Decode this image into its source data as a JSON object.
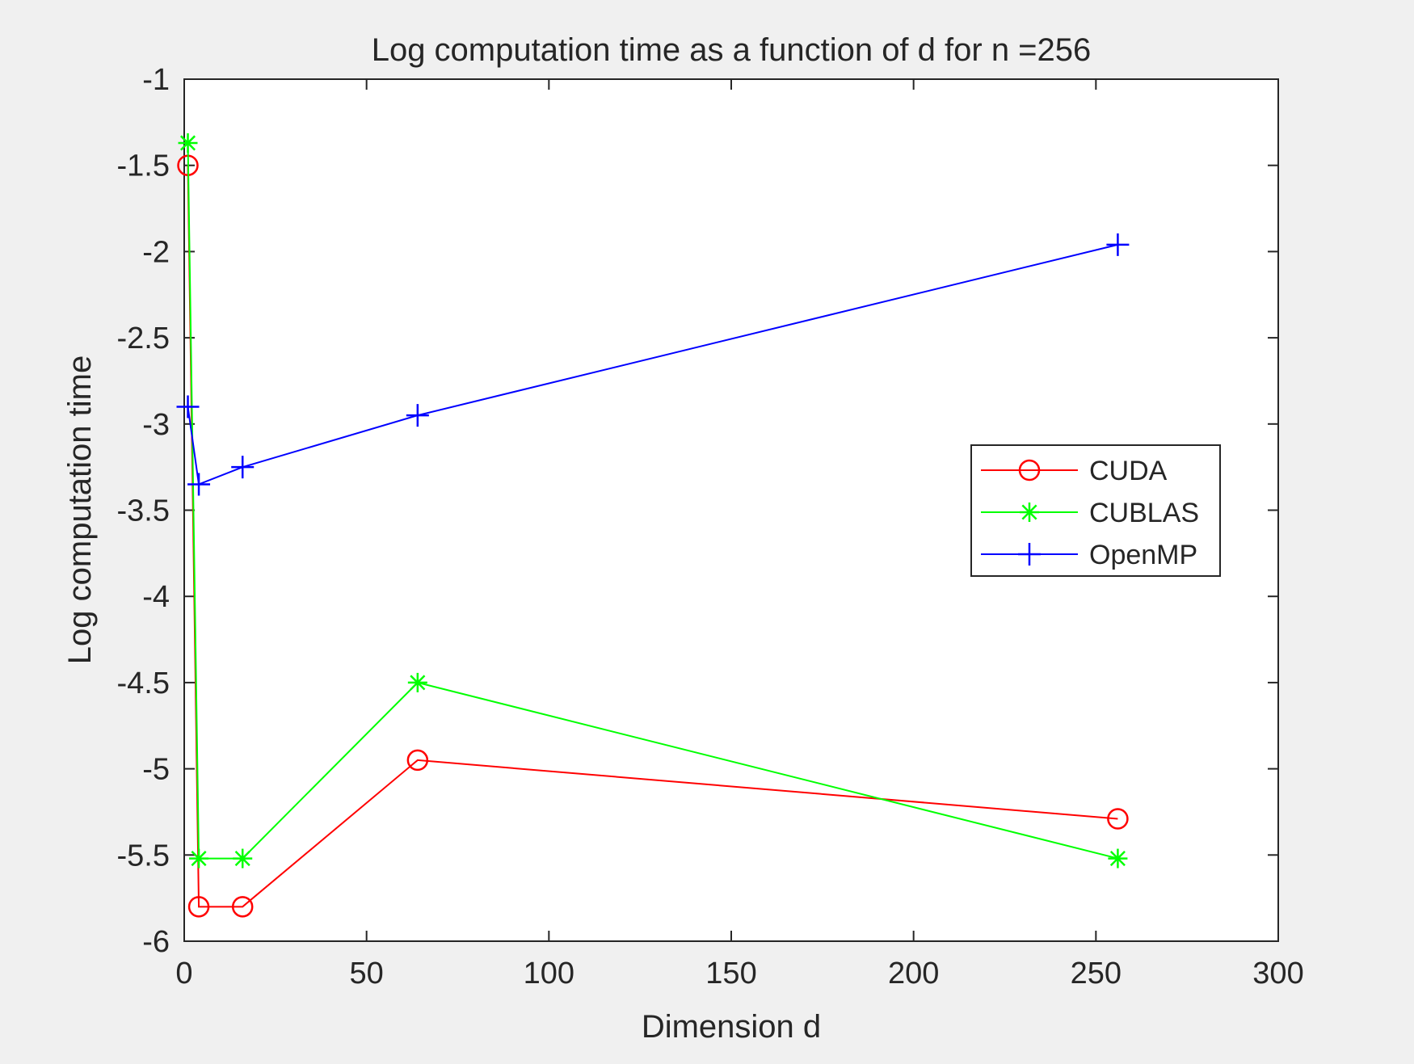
{
  "chart_data": {
    "type": "line",
    "title": "Log computation time as a function of d for n =256",
    "xlabel": "Dimension d",
    "ylabel": "Log computation time",
    "xlim": [
      0,
      300
    ],
    "ylim": [
      -6,
      -1
    ],
    "xticks": [
      0,
      50,
      100,
      150,
      200,
      250,
      300
    ],
    "yticks": [
      -1,
      -1.5,
      -2,
      -2.5,
      -3,
      -3.5,
      -4,
      -4.5,
      -5,
      -5.5,
      -6
    ],
    "xtick_labels": [
      "0",
      "50",
      "100",
      "150",
      "200",
      "250",
      "300"
    ],
    "ytick_labels": [
      "-1",
      "-1.5",
      "-2",
      "-2.5",
      "-3",
      "-3.5",
      "-4",
      "-4.5",
      "-5",
      "-5.5",
      "-6"
    ],
    "grid": false,
    "legend_position": "right",
    "x": [
      1,
      4,
      16,
      64,
      256
    ],
    "series": [
      {
        "name": "CUDA",
        "color": "#ff0000",
        "marker": "circle",
        "values": [
          -1.5,
          -5.8,
          -5.8,
          -4.95,
          -5.29
        ]
      },
      {
        "name": "CUBLAS",
        "color": "#00ff00",
        "marker": "asterisk",
        "values": [
          -1.37,
          -5.52,
          -5.52,
          -4.5,
          -5.52
        ]
      },
      {
        "name": "OpenMP",
        "color": "#0000ff",
        "marker": "plus",
        "values": [
          -2.9,
          -3.35,
          -3.25,
          -2.95,
          -1.96
        ]
      }
    ]
  }
}
